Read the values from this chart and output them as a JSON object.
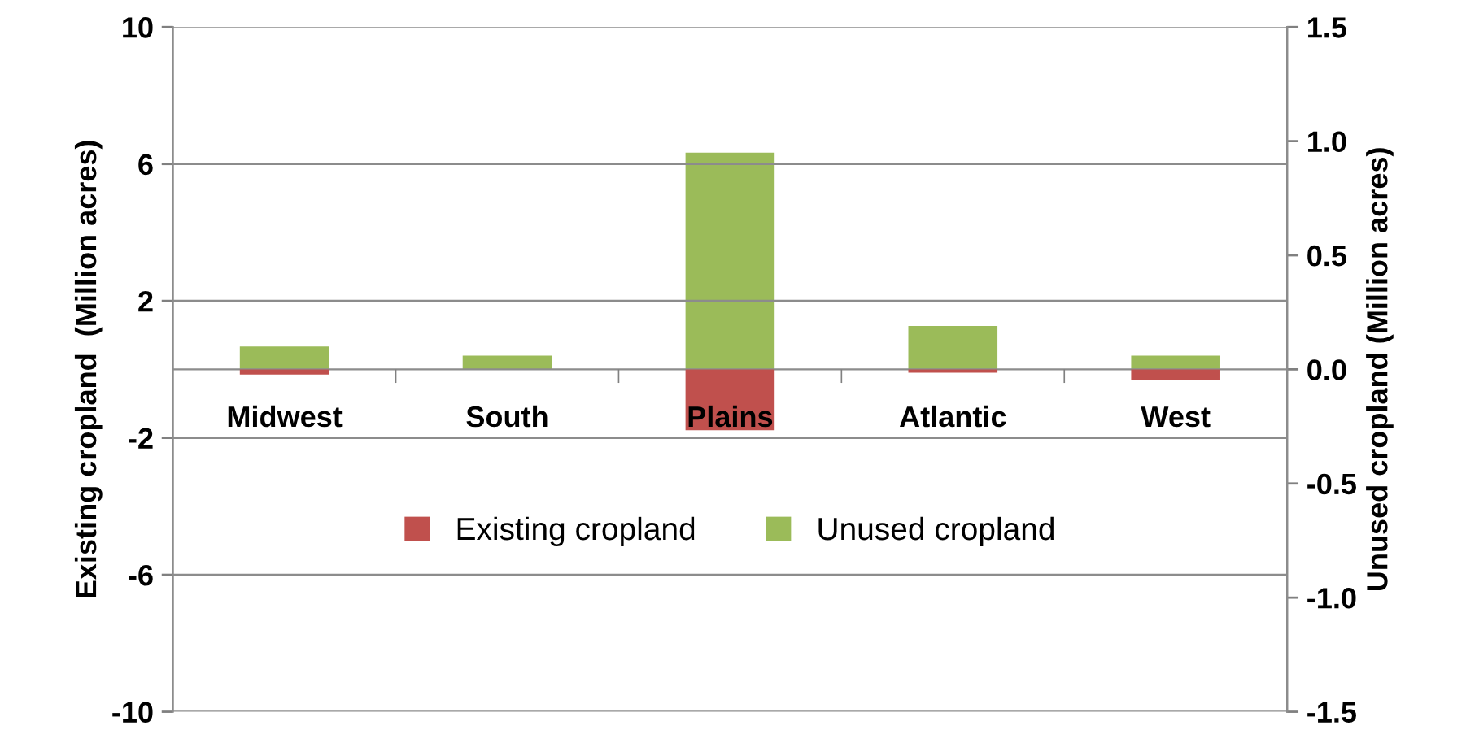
{
  "chart_data": {
    "type": "bar",
    "categories": [
      "Midwest",
      "South",
      "Plains",
      "Atlantic",
      "West"
    ],
    "ylabel": "Existing cropland  (Million acres)",
    "y2label": "Unused cropland (Million acres)",
    "series": [
      {
        "name": "Existing cropland",
        "color": "#c0504d",
        "values": [
          -0.15,
          0,
          -1.78,
          -0.1,
          -0.3
        ]
      },
      {
        "name": "Unused cropland",
        "color": "#9bbb59",
        "axis": "y2",
        "values": [
          0.1,
          0.06,
          0.95,
          0.19,
          0.06
        ]
      }
    ],
    "ylim": [
      -10,
      10
    ],
    "yticks": [
      -10,
      -6,
      -2,
      2,
      6,
      10
    ],
    "y2lim": [
      -1.5,
      1.5
    ],
    "y2ticks": [
      -1.5,
      {
        "value": -1,
        "label": "-1.0"
      },
      -0.5,
      {
        "value": 0,
        "label": "0.0"
      },
      0.5,
      {
        "value": 1,
        "label": "1.0"
      },
      1.5
    ],
    "stacked": true,
    "grid": "y",
    "legend": "bottom"
  }
}
